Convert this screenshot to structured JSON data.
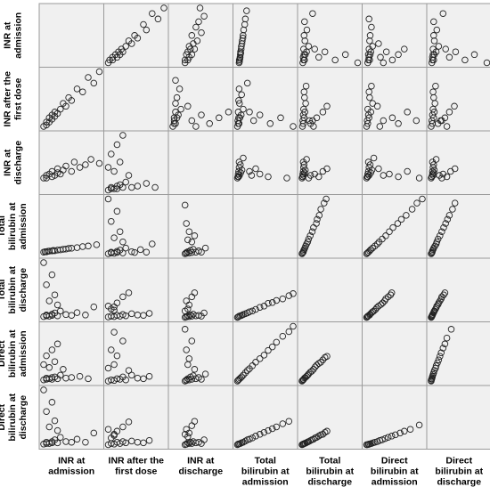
{
  "chart_data": {
    "type": "scatter",
    "subtype": "scatterplot-matrix",
    "variables": [
      "INR at admission",
      "INR after the first dose",
      "INR at discharge",
      "Total bilirubin at admission",
      "Total bilirubin at discharge",
      "Direct bilirubin at admission",
      "Direct bilirubin at discharge"
    ],
    "row_labels": [
      [
        "INR at",
        "admission"
      ],
      [
        "INR after the",
        "first dose"
      ],
      [
        "INR at",
        "discharge"
      ],
      [
        "Total",
        "bilirubin at",
        "admission"
      ],
      [
        "Total",
        "bilirubin at",
        "discharge"
      ],
      [
        "Direct",
        "bilirubin at",
        "admission"
      ],
      [
        "Direct",
        "bilirubin at",
        "discharge"
      ]
    ],
    "col_labels": [
      [
        "INR at",
        "admission"
      ],
      [
        "INR after the",
        "first dose"
      ],
      [
        "INR at",
        "discharge"
      ],
      [
        "Total",
        "bilirubin at",
        "admission"
      ],
      [
        "Total",
        "bilirubin at",
        "discharge"
      ],
      [
        "Direct",
        "bilirubin at",
        "admission"
      ],
      [
        "Direct",
        "bilirubin at",
        "discharge"
      ]
    ],
    "diagonal": "empty",
    "grid": false,
    "legend": "none",
    "marker": "open-circle",
    "colors": {
      "panel_background": "#f0f0f0",
      "marker": "#222222",
      "border": "#9a9a9a"
    },
    "pairs": [
      {
        "a": [
          1.0,
          1.1,
          1.1,
          1.2,
          1.2,
          1.3,
          1.3,
          1.4,
          1.4,
          1.5,
          1.6,
          1.7,
          1.8,
          1.9,
          2.0,
          2.2,
          2.4,
          2.6,
          2.8,
          3.0
        ],
        "b": [
          1.0,
          1.05,
          1.15,
          1.15,
          1.3,
          1.25,
          1.4,
          1.35,
          1.5,
          1.45,
          1.6,
          1.8,
          1.7,
          2.0,
          1.9,
          2.3,
          2.2,
          2.7,
          2.5,
          2.9
        ]
      },
      {
        "a": [
          1.0,
          1.1,
          1.1,
          1.2,
          1.3,
          1.3,
          1.4,
          1.5,
          1.5,
          1.6,
          1.7,
          1.8,
          2.0,
          2.1,
          2.3,
          2.5,
          2.7,
          3.0
        ],
        "b": [
          1.0,
          1.2,
          1.0,
          1.3,
          1.1,
          1.5,
          1.2,
          1.4,
          1.7,
          1.3,
          1.6,
          1.9,
          1.5,
          2.2,
          1.8,
          2.0,
          2.4,
          2.1
        ]
      },
      {
        "a": [
          1.0,
          1.05,
          1.1,
          1.15,
          1.2,
          1.3,
          1.35,
          1.4,
          1.5,
          1.6,
          1.7,
          1.8,
          1.9,
          2.0,
          2.2,
          2.4,
          2.6,
          2.9
        ],
        "b": [
          1.0,
          1.1,
          1.05,
          1.2,
          1.25,
          1.3,
          1.4,
          1.35,
          1.5,
          1.55,
          1.7,
          1.75,
          1.9,
          1.95,
          2.1,
          2.35,
          2.5,
          2.8
        ]
      },
      {
        "a": [
          1.0,
          1.1,
          1.1,
          1.2,
          1.3,
          1.3,
          1.4,
          1.5,
          1.6,
          1.8,
          2.0,
          2.2,
          2.5,
          1.2,
          1.4,
          1.1,
          1.3,
          2.8,
          1.5,
          1.0
        ],
        "b": [
          0.6,
          0.8,
          1.0,
          0.7,
          1.2,
          0.9,
          1.5,
          0.8,
          2.0,
          1.1,
          0.9,
          1.6,
          1.0,
          4.5,
          6.0,
          8.5,
          11.0,
          3.0,
          3.5,
          14.0
        ]
      },
      {
        "a": [
          1.0,
          1.1,
          1.1,
          1.2,
          1.3,
          1.3,
          1.4,
          1.5,
          1.6,
          1.8,
          2.0,
          2.3,
          2.6,
          1.2,
          1.4,
          1.1,
          1.3,
          1.5,
          1.7,
          1.0
        ],
        "b": [
          0.4,
          0.5,
          0.7,
          0.6,
          0.8,
          0.5,
          0.9,
          0.6,
          1.2,
          0.7,
          0.8,
          1.0,
          0.6,
          2.5,
          3.5,
          4.5,
          5.5,
          6.5,
          2.2,
          3.0
        ]
      },
      {
        "a": [
          1.0,
          1.1,
          1.1,
          1.2,
          1.3,
          1.3,
          1.4,
          1.5,
          1.6,
          1.8,
          2.0,
          2.2,
          2.5,
          1.2,
          1.4,
          1.1,
          1.3,
          2.8,
          1.5,
          1.0
        ],
        "b": [
          0.2,
          0.3,
          0.5,
          0.3,
          0.6,
          0.4,
          0.9,
          0.4,
          1.3,
          0.6,
          0.5,
          1.0,
          0.5,
          3.0,
          4.0,
          5.5,
          7.0,
          2.0,
          2.4,
          9.0
        ]
      },
      {
        "a": [
          1.0,
          1.1,
          1.1,
          1.2,
          1.3,
          1.3,
          1.4,
          1.5,
          1.6,
          1.8,
          2.0,
          2.3,
          2.6,
          1.2,
          1.4,
          1.1,
          1.3,
          1.5,
          1.7,
          1.0
        ],
        "b": [
          0.1,
          0.2,
          0.3,
          0.2,
          0.4,
          0.2,
          0.5,
          0.3,
          0.7,
          0.3,
          0.4,
          0.6,
          0.3,
          1.5,
          2.2,
          2.8,
          3.5,
          4.2,
          1.2,
          1.8
        ]
      },
      {
        "a": [
          1.0,
          1.1,
          1.1,
          1.2,
          1.3,
          1.3,
          1.4,
          1.5,
          1.6,
          1.8,
          1.9,
          2.1,
          2.3,
          1.2,
          1.4,
          1.1,
          1.3,
          2.5,
          1.5,
          1.0
        ],
        "b": [
          0.6,
          0.8,
          1.0,
          0.7,
          1.2,
          0.9,
          1.5,
          0.8,
          2.0,
          1.1,
          0.9,
          1.6,
          1.0,
          4.5,
          6.0,
          8.5,
          11.0,
          3.0,
          3.5,
          14.0
        ]
      },
      {
        "a": [
          1.0,
          1.1,
          1.2,
          1.3,
          1.4,
          1.5,
          1.6,
          1.8,
          2.0,
          2.2,
          2.4,
          1.2,
          1.3,
          1.1,
          1.5,
          1.7,
          1.2,
          1.0
        ],
        "b": [
          0.5,
          0.7,
          0.6,
          0.9,
          0.7,
          1.1,
          0.8,
          1.3,
          1.0,
          0.9,
          1.4,
          3.0,
          4.0,
          2.5,
          5.5,
          6.5,
          2.2,
          3.2
        ]
      },
      {
        "a": [
          1.0,
          1.1,
          1.2,
          1.3,
          1.4,
          1.5,
          1.6,
          1.8,
          2.0,
          2.2,
          1.2,
          1.3,
          1.1,
          1.5,
          1.7,
          1.2,
          1.0,
          2.4
        ],
        "b": [
          0.2,
          0.4,
          0.3,
          0.6,
          0.5,
          0.9,
          0.4,
          1.2,
          0.7,
          0.6,
          3.0,
          4.5,
          5.5,
          7.0,
          2.0,
          8.5,
          2.4,
          1.0
        ]
      },
      {
        "a": [
          1.0,
          1.1,
          1.2,
          1.3,
          1.4,
          1.5,
          1.6,
          1.8,
          2.0,
          2.2,
          2.4,
          1.2,
          1.3,
          1.1,
          1.5,
          1.7,
          1.2,
          1.0
        ],
        "b": [
          0.1,
          0.3,
          0.2,
          0.5,
          0.3,
          0.6,
          0.4,
          0.7,
          0.5,
          0.4,
          0.8,
          1.6,
          2.3,
          1.2,
          3.0,
          3.8,
          1.8,
          2.6
        ]
      },
      {
        "a": [
          1.0,
          1.1,
          1.1,
          1.2,
          1.3,
          1.4,
          1.5,
          1.6,
          1.8,
          2.0,
          2.2,
          1.2,
          1.3,
          1.1,
          1.5,
          1.7,
          1.0,
          2.5
        ],
        "b": [
          0.6,
          0.9,
          0.7,
          1.1,
          0.8,
          1.4,
          0.9,
          1.7,
          1.0,
          1.3,
          1.0,
          4.0,
          6.0,
          8.0,
          3.5,
          5.0,
          12.5,
          2.0
        ]
      },
      {
        "a": [
          1.0,
          1.1,
          1.1,
          1.2,
          1.3,
          1.4,
          1.5,
          1.6,
          1.8,
          2.0,
          2.2,
          1.2,
          1.3,
          1.1,
          1.5,
          1.7,
          1.0,
          2.4
        ],
        "b": [
          0.4,
          0.6,
          0.5,
          0.8,
          0.6,
          1.0,
          0.7,
          1.2,
          0.8,
          0.9,
          0.7,
          2.5,
          3.5,
          4.5,
          5.5,
          6.5,
          2.0,
          1.5
        ]
      },
      {
        "a": [
          1.0,
          1.1,
          1.1,
          1.2,
          1.3,
          1.4,
          1.5,
          1.6,
          1.8,
          2.0,
          2.2,
          1.2,
          1.3,
          1.1,
          1.5,
          1.7,
          1.0,
          2.5
        ],
        "b": [
          0.2,
          0.4,
          0.3,
          0.6,
          0.4,
          0.9,
          0.5,
          1.1,
          0.6,
          0.8,
          0.5,
          3.0,
          4.0,
          5.5,
          7.0,
          2.2,
          9.0,
          1.4
        ]
      },
      {
        "a": [
          1.0,
          1.1,
          1.1,
          1.2,
          1.3,
          1.4,
          1.5,
          1.6,
          1.8,
          2.0,
          2.2,
          1.2,
          1.3,
          1.1,
          1.5,
          1.7,
          1.0,
          2.4
        ],
        "b": [
          0.1,
          0.2,
          0.2,
          0.4,
          0.3,
          0.5,
          0.3,
          0.6,
          0.4,
          0.5,
          0.3,
          1.4,
          2.0,
          2.6,
          3.2,
          3.9,
          1.8,
          0.9
        ]
      },
      {
        "a": [
          0.6,
          0.8,
          1.0,
          1.3,
          1.6,
          2.0,
          2.5,
          3.0,
          3.5,
          4.2,
          5.0,
          6.0,
          7.0,
          8.0,
          9.0,
          10.0,
          11.5,
          13.0,
          14.0
        ],
        "b": [
          0.4,
          0.5,
          0.7,
          0.8,
          0.9,
          1.1,
          1.3,
          1.5,
          1.8,
          2.0,
          2.4,
          2.9,
          3.2,
          3.9,
          4.1,
          4.6,
          5.0,
          5.8,
          6.3
        ]
      },
      {
        "a": [
          0.6,
          0.8,
          1.0,
          1.3,
          1.6,
          2.0,
          2.5,
          3.0,
          3.5,
          4.2,
          5.0,
          6.0,
          7.0,
          8.0,
          9.0,
          10.0,
          11.5,
          13.0,
          14.0
        ],
        "b": [
          0.2,
          0.35,
          0.5,
          0.7,
          0.9,
          1.2,
          1.6,
          2.0,
          2.3,
          2.8,
          3.4,
          4.0,
          4.6,
          5.4,
          6.0,
          6.8,
          7.8,
          8.6,
          9.5
        ]
      },
      {
        "a": [
          0.6,
          0.8,
          1.0,
          1.3,
          1.6,
          2.0,
          2.5,
          3.0,
          3.5,
          4.2,
          5.0,
          6.0,
          7.0,
          8.0,
          9.0,
          10.0,
          11.5,
          13.0
        ],
        "b": [
          0.1,
          0.2,
          0.25,
          0.3,
          0.4,
          0.5,
          0.7,
          0.9,
          1.0,
          1.2,
          1.5,
          1.8,
          2.1,
          2.4,
          2.7,
          3.0,
          3.5,
          3.9
        ]
      },
      {
        "a": [
          0.4,
          0.5,
          0.7,
          0.8,
          1.0,
          1.2,
          1.5,
          1.8,
          2.0,
          2.4,
          2.8,
          3.2,
          3.6,
          4.0,
          4.5,
          5.0,
          5.5,
          6.0,
          6.5
        ],
        "b": [
          0.2,
          0.3,
          0.4,
          0.5,
          0.7,
          0.8,
          1.0,
          1.2,
          1.4,
          1.7,
          1.9,
          2.2,
          2.6,
          2.9,
          3.2,
          3.4,
          3.8,
          4.2,
          4.4
        ]
      },
      {
        "a": [
          0.4,
          0.5,
          0.7,
          0.8,
          1.0,
          1.2,
          1.5,
          1.8,
          2.0,
          2.4,
          2.8,
          3.2,
          3.6,
          4.0,
          4.5,
          5.0,
          5.5,
          6.0,
          6.5
        ],
        "b": [
          0.1,
          0.15,
          0.2,
          0.25,
          0.3,
          0.35,
          0.45,
          0.55,
          0.6,
          0.75,
          0.9,
          1.0,
          1.2,
          1.3,
          1.5,
          1.7,
          1.8,
          2.1,
          2.3
        ]
      },
      {
        "a": [
          0.2,
          0.3,
          0.5,
          0.6,
          0.8,
          1.0,
          1.3,
          1.6,
          2.0,
          2.4,
          2.8,
          3.3,
          3.8,
          4.4,
          5.0,
          5.8,
          6.5,
          7.5,
          9.0
        ],
        "b": [
          0.1,
          0.1,
          0.15,
          0.2,
          0.25,
          0.3,
          0.4,
          0.5,
          0.6,
          0.8,
          0.9,
          1.1,
          1.3,
          1.5,
          1.7,
          2.0,
          2.3,
          2.6,
          3.3
        ]
      }
    ]
  }
}
